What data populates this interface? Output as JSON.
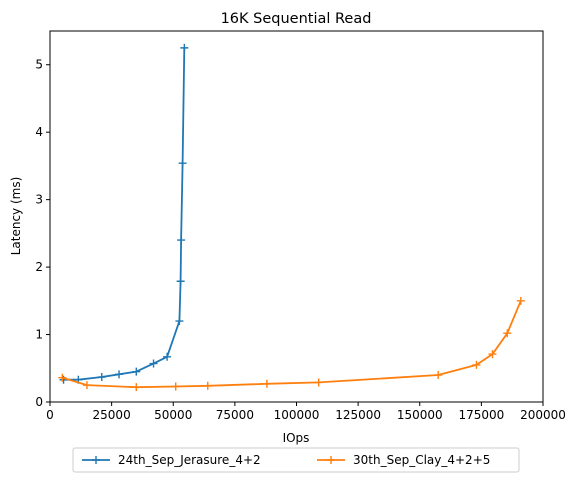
{
  "chart_data": {
    "type": "line",
    "title": "16K  Sequential Read",
    "xlabel": "IOps",
    "ylabel": "Latency (ms)",
    "xlim": [
      0,
      200000
    ],
    "ylim": [
      0,
      5.5
    ],
    "xticks": [
      0,
      25000,
      50000,
      75000,
      100000,
      125000,
      150000,
      175000,
      200000
    ],
    "yticks": [
      0,
      1,
      2,
      3,
      4,
      5
    ],
    "grid": false,
    "legend_position": "bottom-center",
    "marker": "plus",
    "series": [
      {
        "name": "24th_Sep_Jerasure_4+2",
        "color": "#1f77b4",
        "x": [
          5500,
          11500,
          21000,
          28000,
          35000,
          42000,
          47500,
          52500,
          53000,
          53200,
          53800,
          54500
        ],
        "y": [
          0.33,
          0.33,
          0.37,
          0.41,
          0.45,
          0.57,
          0.67,
          1.2,
          1.79,
          2.4,
          3.54,
          5.25
        ]
      },
      {
        "name": "30th_Sep_Clay_4+2+5",
        "color": "#ff7f0e",
        "x": [
          5000,
          15000,
          35000,
          51000,
          64000,
          88000,
          109000,
          157500,
          173000,
          179500,
          185500,
          191000
        ],
        "y": [
          0.36,
          0.25,
          0.22,
          0.23,
          0.24,
          0.27,
          0.29,
          0.4,
          0.55,
          0.71,
          1.02,
          1.5
        ]
      }
    ]
  }
}
